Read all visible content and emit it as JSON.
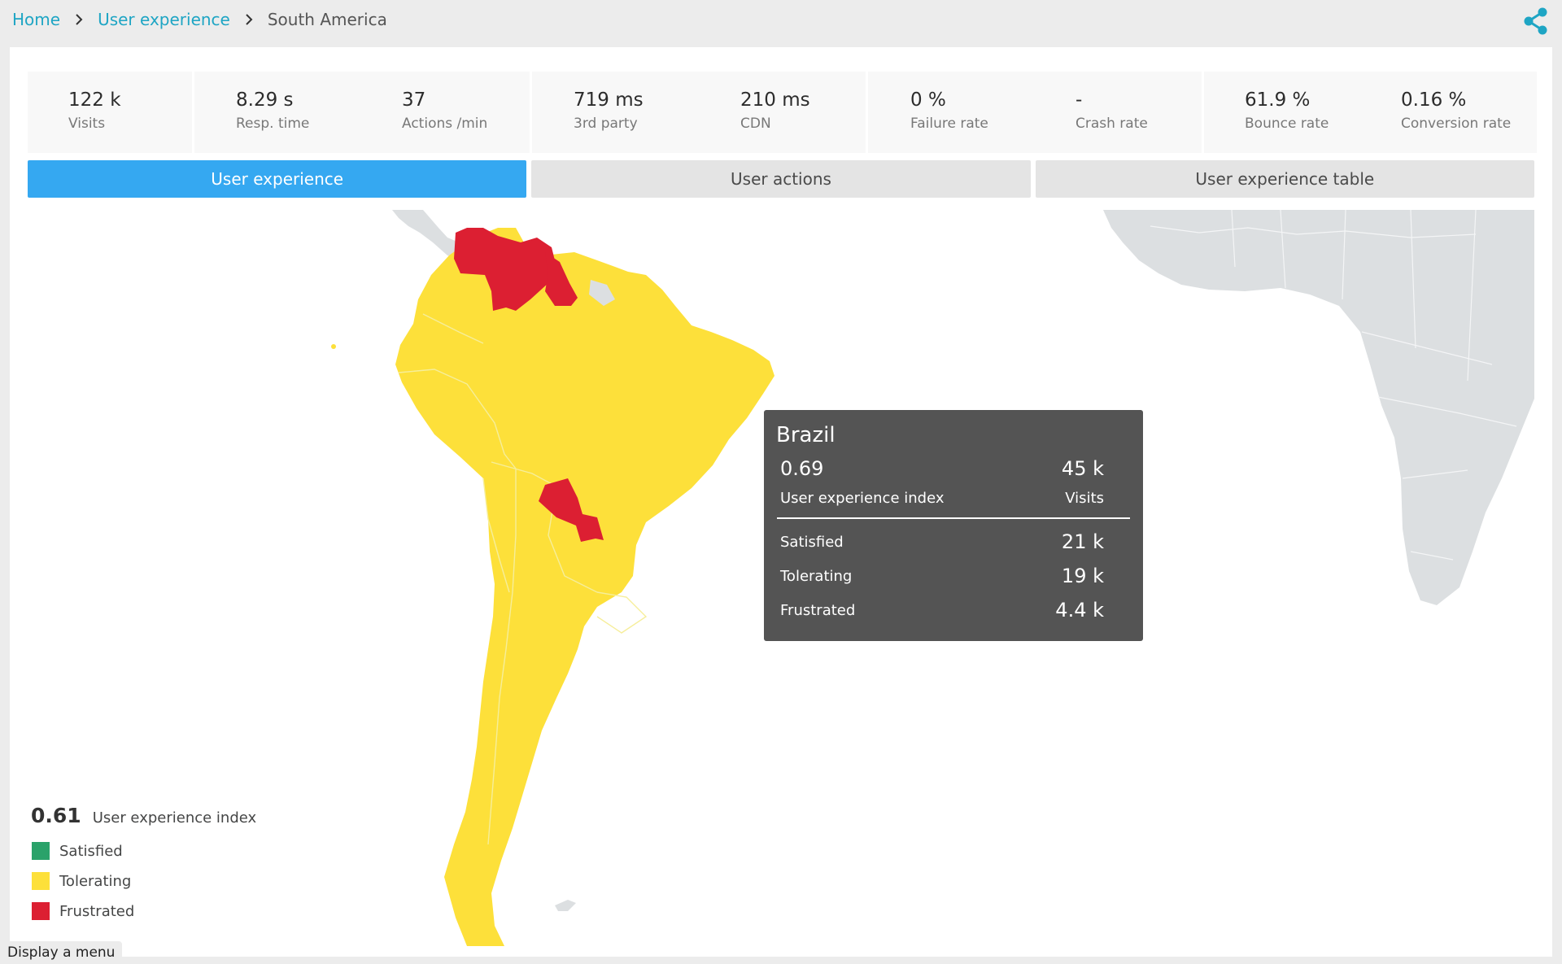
{
  "breadcrumb": {
    "items": [
      {
        "label": "Home"
      },
      {
        "label": "User experience"
      },
      {
        "label": "South America"
      }
    ]
  },
  "header": {
    "share_icon": "share-icon"
  },
  "metrics": [
    {
      "value": "122 k",
      "label": "Visits"
    },
    {
      "value": "8.29 s",
      "label": "Resp. time"
    },
    {
      "value": "37",
      "label": "Actions /min"
    },
    {
      "value": "719 ms",
      "label": "3rd party"
    },
    {
      "value": "210 ms",
      "label": "CDN"
    },
    {
      "value": "0 %",
      "label": "Failure rate"
    },
    {
      "value": "-",
      "label": "Crash rate"
    },
    {
      "value": "61.9 %",
      "label": "Bounce rate"
    },
    {
      "value": "0.16 %",
      "label": "Conversion rate"
    }
  ],
  "tabs": [
    {
      "label": "User experience",
      "active": true
    },
    {
      "label": "User actions",
      "active": false
    },
    {
      "label": "User experience table",
      "active": false
    }
  ],
  "colors": {
    "accent": "#35a8f1",
    "link": "#1ea5c4",
    "satisfied": "#2aa26a",
    "tolerating": "#fde03a",
    "frustrated": "#dc1f32",
    "land_other": "#dcdfe1"
  },
  "legend": {
    "index_value": "0.61",
    "index_label": "User experience index",
    "items": [
      {
        "label": "Satisfied",
        "color": "#2aa26a"
      },
      {
        "label": "Tolerating",
        "color": "#fde03a"
      },
      {
        "label": "Frustrated",
        "color": "#dc1f32"
      }
    ]
  },
  "tooltip": {
    "country": "Brazil",
    "index_value": "0.69",
    "index_label": "User experience index",
    "visits_value": "45 k",
    "visits_label": "Visits",
    "rows": [
      {
        "label": "Satisfied",
        "value": "21 k"
      },
      {
        "label": "Tolerating",
        "value": "19 k"
      },
      {
        "label": "Frustrated",
        "value": "4.4 k"
      }
    ]
  },
  "footer": {
    "display_menu": "Display a menu"
  }
}
